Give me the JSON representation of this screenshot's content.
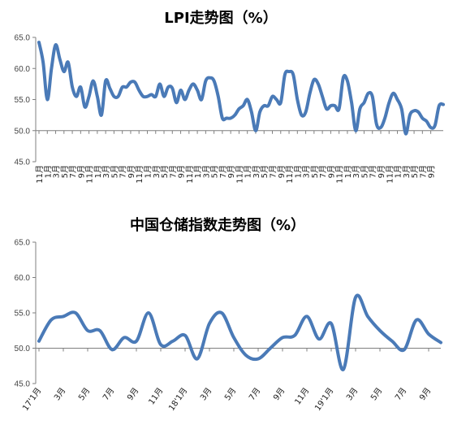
{
  "chart_data": [
    {
      "type": "line",
      "title": "LPI走势图（%）",
      "ylim": [
        45,
        65
      ],
      "yticks": [
        "45.0",
        "50.0",
        "55.0",
        "60.0",
        "65.0"
      ],
      "baseline": 50,
      "grid": false,
      "x_labels": [
        "11月",
        "1月",
        "3月",
        "5月",
        "7月",
        "9月",
        "11月",
        "1月",
        "3月",
        "5月",
        "7月",
        "9月",
        "11月",
        "1月",
        "3月",
        "5月",
        "7月",
        "9月",
        "11月",
        "1月",
        "3月",
        "5月",
        "7月",
        "9月",
        "11月",
        "1月",
        "3月",
        "5月",
        "7月",
        "9月",
        "11月",
        "1月",
        "3月",
        "5月",
        "7月",
        "9月",
        "11月",
        "1月",
        "3月",
        "5月",
        "7月",
        "9月",
        "11月",
        "1月",
        "3月",
        "5月",
        "7月",
        "9月"
      ],
      "x_label_indices": [
        0,
        2,
        4,
        6,
        8,
        10,
        12,
        14,
        16,
        18,
        20,
        22,
        24,
        26,
        28,
        30,
        32,
        34,
        36,
        38,
        40,
        42,
        44,
        46,
        48,
        50,
        52,
        54,
        56,
        58,
        60,
        62,
        64,
        66,
        68,
        70,
        72,
        74,
        76,
        78,
        80,
        82,
        84,
        86,
        88,
        90,
        92,
        94
      ],
      "values": [
        64.2,
        61.0,
        55.0,
        60.0,
        63.8,
        61.5,
        59.5,
        61.0,
        57.0,
        55.5,
        57.0,
        53.8,
        55.5,
        58.0,
        55.5,
        52.5,
        58.0,
        56.8,
        55.5,
        55.5,
        57.0,
        57.0,
        57.8,
        57.8,
        56.5,
        55.5,
        55.5,
        55.8,
        55.5,
        57.5,
        55.5,
        57.0,
        56.8,
        54.5,
        56.5,
        55.0,
        56.5,
        57.5,
        56.5,
        55.0,
        58.0,
        58.5,
        58.0,
        55.5,
        52.0,
        52.0,
        52.0,
        52.5,
        53.5,
        54.0,
        55.0,
        53.0,
        50.0,
        53.0,
        54.0,
        54.0,
        55.5,
        55.0,
        54.5,
        59.0,
        59.5,
        59.0,
        55.0,
        52.5,
        53.0,
        56.0,
        58.2,
        57.5,
        55.5,
        53.5,
        54.0,
        54.0,
        53.5,
        58.5,
        58.0,
        54.5,
        50.0,
        53.5,
        54.5,
        56.0,
        55.5,
        51.0,
        50.5,
        52.0,
        54.5,
        56.0,
        55.0,
        53.5,
        49.5,
        52.5,
        53.2,
        53.0,
        52.0,
        51.5,
        50.5,
        50.8,
        54.0,
        54.2
      ]
    },
    {
      "type": "line",
      "title": "中国仓储指数走势图（%）",
      "ylim": [
        45,
        65
      ],
      "yticks": [
        "45.0",
        "50.0",
        "55.0",
        "60.0",
        "65.0"
      ],
      "baseline": 50,
      "grid": false,
      "x_labels": [
        "17'1月",
        "3月",
        "5月",
        "7月",
        "9月",
        "11月",
        "18'1月",
        "3月",
        "5月",
        "7月",
        "9月",
        "11月",
        "19'1月",
        "3月",
        "5月",
        "7月",
        "9月"
      ],
      "x_label_indices": [
        0,
        2,
        4,
        6,
        8,
        10,
        12,
        14,
        16,
        18,
        20,
        22,
        24,
        26,
        28,
        30,
        32
      ],
      "values": [
        51.0,
        54.0,
        54.5,
        55.0,
        52.5,
        52.5,
        49.8,
        51.5,
        51.0,
        55.0,
        50.5,
        51.0,
        51.8,
        48.5,
        53.5,
        55.0,
        51.5,
        49.0,
        48.5,
        50.0,
        51.5,
        51.8,
        54.5,
        51.3,
        53.5,
        47.0,
        57.2,
        54.5,
        52.5,
        51.0,
        49.8,
        54.0,
        52.0,
        50.8
      ]
    }
  ]
}
